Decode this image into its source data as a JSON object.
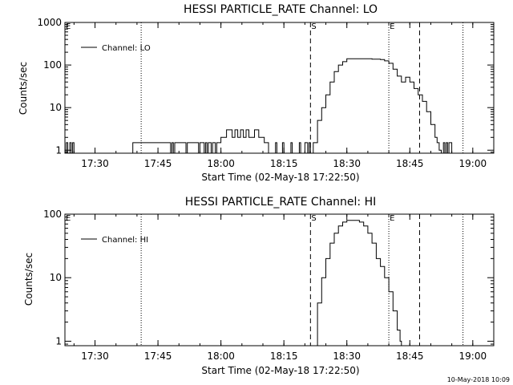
{
  "chart_data": [
    {
      "type": "line",
      "title": "HESSI PARTICLE_RATE Channel: LO",
      "xlabel": "Start Time (02-May-18 17:22:50)",
      "ylabel": "Counts/sec",
      "yscale": "log",
      "xlim": [
        "17:22:50",
        "19:05:00"
      ],
      "ylim": [
        0.85,
        1000
      ],
      "xticks": [
        "17:30",
        "17:45",
        "18:00",
        "18:15",
        "18:30",
        "18:45",
        "19:00"
      ],
      "yticks": [
        "1",
        "10",
        "100",
        "1000"
      ],
      "legend": {
        "position": "top-left",
        "entries": [
          "Channel: LO"
        ]
      },
      "markers": [
        {
          "label": "E",
          "time": "17:22:50",
          "style": "dotted"
        },
        {
          "label": "",
          "time": "17:41:00",
          "style": "dotted"
        },
        {
          "label": "S",
          "time": "18:21:20",
          "style": "dashed"
        },
        {
          "label": "E",
          "time": "18:40:00",
          "style": "dotted"
        },
        {
          "label": "",
          "time": "18:47:20",
          "style": "dashed"
        },
        {
          "label": "",
          "time": "18:57:40",
          "style": "dotted"
        }
      ],
      "series": [
        {
          "name": "Channel: LO",
          "x": [
            "17:22:50",
            "17:23:10",
            "17:23:30",
            "17:24:00",
            "17:24:20",
            "17:24:40",
            "17:25:00",
            "17:38:40",
            "17:39:00",
            "17:48:00",
            "17:48:20",
            "17:48:40",
            "17:49:00",
            "17:51:40",
            "17:52:00",
            "17:54:40",
            "17:55:00",
            "17:56:00",
            "17:56:20",
            "17:56:40",
            "17:57:00",
            "17:57:40",
            "17:58:00",
            "17:58:40",
            "17:59:00",
            "17:59:40",
            "18:00:00",
            "18:01:00",
            "18:01:20",
            "18:02:20",
            "18:02:40",
            "18:03:20",
            "18:04:00",
            "18:04:40",
            "18:05:20",
            "18:06:00",
            "18:06:40",
            "18:07:20",
            "18:08:00",
            "18:08:30",
            "18:09:00",
            "18:09:30",
            "18:10:00",
            "18:10:20",
            "18:11:00",
            "18:11:20",
            "18:12:40",
            "18:13:00",
            "18:13:20",
            "18:14:20",
            "18:14:40",
            "18:15:00",
            "18:16:20",
            "18:16:40",
            "18:17:00",
            "18:18:20",
            "18:18:40",
            "18:19:00",
            "18:19:40",
            "18:20:00",
            "18:20:40",
            "18:21:00",
            "18:21:20",
            "18:22:00",
            "18:23:00",
            "18:24:00",
            "18:25:00",
            "18:26:00",
            "18:27:00",
            "18:28:00",
            "18:29:00",
            "18:30:00",
            "18:32:00",
            "18:34:00",
            "18:36:00",
            "18:38:00",
            "18:39:00",
            "18:40:00",
            "18:41:00",
            "18:42:00",
            "18:43:00",
            "18:44:00",
            "18:45:00",
            "18:46:00",
            "18:47:00",
            "18:48:00",
            "18:49:00",
            "18:50:00",
            "18:51:00",
            "18:51:30",
            "18:52:00",
            "18:52:30",
            "18:53:00",
            "18:53:20",
            "18:53:40",
            "18:54:00",
            "18:54:20",
            "18:54:40",
            "18:55:00",
            "18:55:20"
          ],
          "values": [
            0.85,
            1.5,
            0.85,
            1.5,
            0.85,
            1.5,
            0.85,
            0.85,
            1.5,
            0.85,
            1.5,
            0.85,
            1.5,
            0.85,
            1.5,
            0.85,
            1.5,
            0.85,
            1.5,
            0.85,
            1.5,
            0.85,
            1.5,
            0.85,
            1.5,
            1.5,
            2,
            2,
            3,
            3,
            2,
            3,
            2,
            3,
            2,
            3,
            2,
            2,
            3,
            3,
            2,
            2,
            2,
            1.5,
            1.5,
            0.85,
            0.85,
            1.5,
            0.85,
            0.85,
            1.5,
            0.85,
            0.85,
            1.5,
            0.85,
            0.85,
            1.5,
            0.85,
            0.85,
            1.5,
            0.85,
            1.5,
            0.85,
            1.5,
            5,
            10,
            20,
            40,
            70,
            100,
            120,
            140,
            140,
            140,
            138,
            135,
            125,
            110,
            80,
            55,
            40,
            52,
            40,
            28,
            20,
            14,
            8,
            4,
            2,
            1.5,
            1,
            0.85,
            1.5,
            0.85,
            1.5,
            0.85,
            1.5,
            1.5,
            0.85,
            0.85
          ]
        }
      ]
    },
    {
      "type": "line",
      "title": "HESSI PARTICLE_RATE Channel: HI",
      "xlabel": "Start Time (02-May-18 17:22:50)",
      "ylabel": "Counts/sec",
      "yscale": "log",
      "xlim": [
        "17:22:50",
        "19:05:00"
      ],
      "ylim": [
        0.85,
        100
      ],
      "xticks": [
        "17:30",
        "17:45",
        "18:00",
        "18:15",
        "18:30",
        "18:45",
        "19:00"
      ],
      "yticks": [
        "1",
        "10",
        "100"
      ],
      "legend": {
        "position": "top-left",
        "entries": [
          "Channel: HI"
        ]
      },
      "markers": [
        {
          "label": "E",
          "time": "17:22:50",
          "style": "dotted"
        },
        {
          "label": "",
          "time": "17:41:00",
          "style": "dotted"
        },
        {
          "label": "S",
          "time": "18:21:20",
          "style": "dashed"
        },
        {
          "label": "E",
          "time": "18:40:00",
          "style": "dotted"
        },
        {
          "label": "",
          "time": "18:47:20",
          "style": "dashed"
        },
        {
          "label": "",
          "time": "18:57:40",
          "style": "dotted"
        }
      ],
      "series": [
        {
          "name": "Channel: HI",
          "x": [
            "18:22:00",
            "18:23:00",
            "18:24:00",
            "18:25:00",
            "18:26:00",
            "18:27:00",
            "18:28:00",
            "18:29:00",
            "18:30:00",
            "18:31:00",
            "18:32:00",
            "18:33:00",
            "18:34:00",
            "18:35:00",
            "18:36:00",
            "18:37:00",
            "18:38:00",
            "18:39:00",
            "18:40:00",
            "18:41:00",
            "18:42:00",
            "18:42:40",
            "18:43:00"
          ],
          "values": [
            0.85,
            4,
            10,
            20,
            35,
            50,
            65,
            75,
            80,
            80,
            80,
            75,
            65,
            50,
            35,
            20,
            15,
            10,
            6,
            3,
            1.5,
            1,
            0.85
          ]
        }
      ]
    }
  ],
  "footer": {
    "timestamp": "10-May-2018 10:09"
  }
}
